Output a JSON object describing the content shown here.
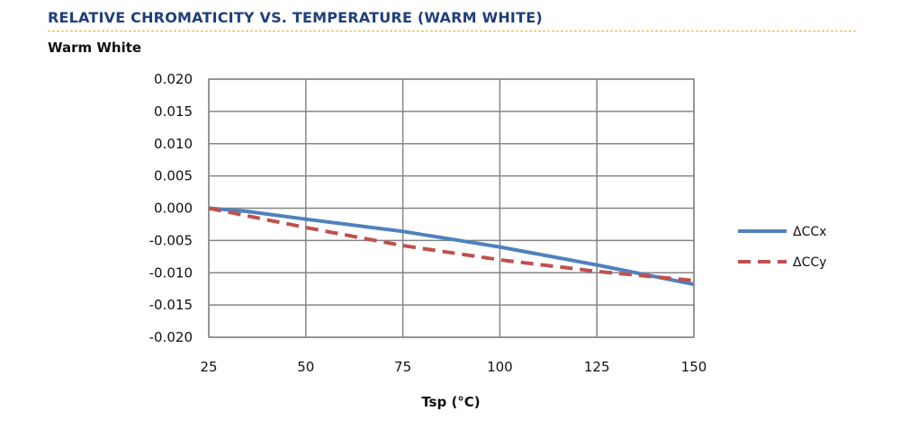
{
  "page": {
    "heading": "RELATIVE CHROMATICITY VS. TEMPERATURE (WARM WHITE)",
    "heading_color": "#1f3f7a",
    "rule_color": "#e0b23a"
  },
  "chart_data": {
    "type": "line",
    "title": "Warm White",
    "xlabel": "Tsp (°C)",
    "ylabel": "",
    "xlim": [
      25,
      150
    ],
    "ylim": [
      -0.02,
      0.02
    ],
    "x_ticks": [
      25,
      50,
      75,
      100,
      125,
      150
    ],
    "y_ticks": [
      0.02,
      0.015,
      0.01,
      0.005,
      0.0,
      -0.005,
      -0.01,
      -0.015,
      -0.02
    ],
    "x_tick_labels": [
      "25",
      "50",
      "75",
      "100",
      "125",
      "150"
    ],
    "y_tick_labels": [
      "0.020",
      "0.015",
      "0.010",
      "0.005",
      "0.000",
      "-0.005",
      "-0.010",
      "-0.015",
      "-0.020"
    ],
    "grid": true,
    "legend_position": "right",
    "series": [
      {
        "name": "ΔCCx",
        "color": "#4f81bd",
        "style": "solid",
        "x": [
          25,
          35,
          50,
          75,
          100,
          125,
          150
        ],
        "y": [
          0.0,
          -0.0005,
          -0.0017,
          -0.0036,
          -0.006,
          -0.0088,
          -0.0118
        ]
      },
      {
        "name": "ΔCCy",
        "color": "#c0504d",
        "style": "dashed",
        "x": [
          25,
          50,
          75,
          100,
          125,
          150
        ],
        "y": [
          0.0,
          -0.003,
          -0.0058,
          -0.008,
          -0.0098,
          -0.0112
        ]
      }
    ]
  }
}
